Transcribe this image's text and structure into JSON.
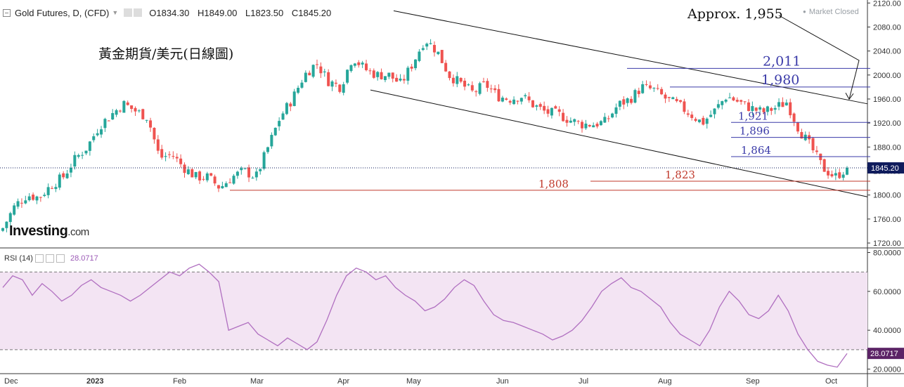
{
  "header": {
    "symbol": "Gold Futures, D, (CFD)",
    "open": "O1834.30",
    "high": "H1849.00",
    "low": "L1823.50",
    "close": "C1845.20",
    "market_status": "Market Closed"
  },
  "subtitle": "黃金期貨/美元(日線圖)",
  "logo": {
    "main": "Investing",
    "suffix": ".com"
  },
  "rsi_header": {
    "label": "RSI (14)",
    "value": "28.0717"
  },
  "colors": {
    "up": "#26a69a",
    "down": "#ef5350",
    "support": "#c0392b",
    "resistance": "#3a3aa8",
    "rsi_line": "#b06fc0",
    "rsi_band": "#f3e4f3",
    "last_price_tag": "#0f1b5c"
  },
  "chart_data": [
    {
      "type": "candlestick",
      "title": "",
      "x_labels": [
        "Dec",
        "2023",
        "Feb",
        "Mar",
        "Apr",
        "May",
        "Jun",
        "Jul",
        "Aug",
        "Sep",
        "Oct"
      ],
      "y_ticks": [
        1720,
        1760,
        1800,
        1840,
        1880,
        1920,
        1960,
        2000,
        2040,
        2080,
        2120
      ],
      "ylim": [
        1713,
        2125
      ],
      "close_path": [
        1745,
        1782,
        1800,
        1796,
        1816,
        1830,
        1860,
        1880,
        1915,
        1934,
        1952,
        1940,
        1930,
        1862,
        1868,
        1846,
        1830,
        1830,
        1812,
        1830,
        1840,
        1830,
        1880,
        1930,
        1960,
        2000,
        2020,
        1990,
        1980,
        2030,
        2010,
        2000,
        2000,
        1985,
        2020,
        2060,
        2040,
        2000,
        1985,
        1970,
        1985,
        1965,
        1960,
        1965,
        1950,
        1938,
        1935,
        1925,
        1918,
        1918,
        1922,
        1950,
        1960,
        1980,
        1975,
        1960,
        1950,
        1935,
        1920,
        1940,
        1965,
        1955,
        1945,
        1938,
        1945,
        1955,
        1910,
        1880,
        1845,
        1830,
        1845.2
      ],
      "last_price": 1845.2,
      "annotations": [
        {
          "label": "Approx. 1,955",
          "value": 1955
        },
        {
          "label": "2,011",
          "value": 2011
        },
        {
          "label": "1,980",
          "value": 1980
        },
        {
          "label": "1,921",
          "value": 1921
        },
        {
          "label": "1,896",
          "value": 1896
        },
        {
          "label": "1,864",
          "value": 1864
        },
        {
          "label": "1,823",
          "value": 1823
        },
        {
          "label": "1,808",
          "value": 1808
        }
      ],
      "last_price_label": "1845.20"
    },
    {
      "type": "line",
      "title": "RSI (14)",
      "y_ticks": [
        20,
        40,
        60,
        80
      ],
      "y_tick_labels": [
        "20.0000",
        "40.0000",
        "60.0000",
        "80.0000"
      ],
      "ylim": [
        18,
        82
      ],
      "bands": [
        30,
        70
      ],
      "values": [
        62,
        68,
        66,
        58,
        64,
        60,
        55,
        58,
        63,
        66,
        62,
        60,
        58,
        55,
        58,
        62,
        66,
        70,
        68,
        72,
        74,
        70,
        65,
        40,
        42,
        44,
        38,
        35,
        32,
        36,
        33,
        30,
        34,
        45,
        58,
        68,
        72,
        70,
        66,
        68,
        62,
        58,
        55,
        50,
        52,
        56,
        62,
        66,
        63,
        55,
        48,
        45,
        44,
        42,
        40,
        38,
        35,
        37,
        40,
        45,
        52,
        60,
        64,
        67,
        62,
        60,
        56,
        52,
        44,
        38,
        35,
        32,
        40,
        52,
        60,
        55,
        48,
        46,
        50,
        58,
        50,
        38,
        30,
        24,
        22,
        21,
        28.07
      ],
      "last_value_label": "28.0717"
    }
  ]
}
